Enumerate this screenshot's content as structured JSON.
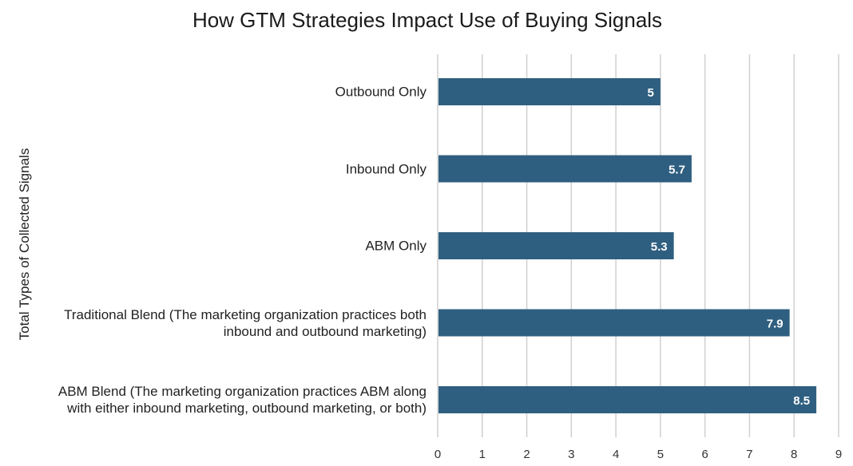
{
  "chart_data": {
    "type": "bar",
    "orientation": "horizontal",
    "title": "How GTM Strategies Impact Use of Buying Signals",
    "xlabel": "",
    "ylabel": "Total Types of Collected Signals",
    "categories": [
      "Outbound Only",
      "Inbound Only",
      "ABM Only",
      "Traditional Blend (The marketing organization practices both\ninbound and outbound marketing)",
      "ABM Blend (The marketing organization practices ABM along\nwith either inbound marketing, outbound marketing, or both)"
    ],
    "values": [
      5,
      5.7,
      5.3,
      7.9,
      8.5
    ],
    "data_labels": [
      "5",
      "5.7",
      "5.3",
      "7.9",
      "8.5"
    ],
    "xlim": [
      0,
      9
    ],
    "xticks": [
      "0",
      "1",
      "2",
      "3",
      "4",
      "5",
      "6",
      "7",
      "8",
      "9"
    ],
    "grid": "vertical",
    "bar_color": "#2f5f80",
    "grid_color": "#d0d0d0",
    "label_color": "#ffffff"
  }
}
